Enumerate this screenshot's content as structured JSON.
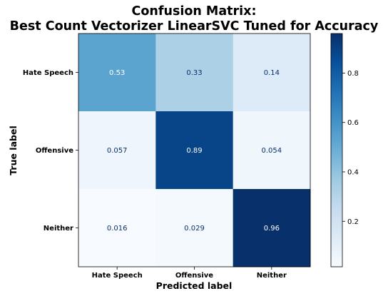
{
  "chart_data": {
    "type": "heatmap",
    "title_line1": "Confusion Matrix:",
    "title_line2": "Best Count Vectorizer LinearSVC Tuned for Accuracy",
    "xlabel": "Predicted label",
    "ylabel": "True label",
    "x_categories": [
      "Hate Speech",
      "Offensive",
      "Neither"
    ],
    "y_categories": [
      "Hate Speech",
      "Offensive",
      "Neither"
    ],
    "values": [
      [
        0.53,
        0.33,
        0.14
      ],
      [
        0.057,
        0.89,
        0.054
      ],
      [
        0.016,
        0.029,
        0.96
      ]
    ],
    "value_labels": [
      [
        "0.53",
        "0.33",
        "0.14"
      ],
      [
        "0.057",
        "0.89",
        "0.054"
      ],
      [
        "0.016",
        "0.029",
        "0.96"
      ]
    ],
    "colormap": "Blues",
    "vmin": 0.016,
    "vmax": 0.96,
    "colorbar_ticks": [
      0.2,
      0.4,
      0.6,
      0.8
    ],
    "colorbar_tick_labels": [
      "0.2",
      "0.4",
      "0.6",
      "0.8"
    ],
    "grid": false
  }
}
